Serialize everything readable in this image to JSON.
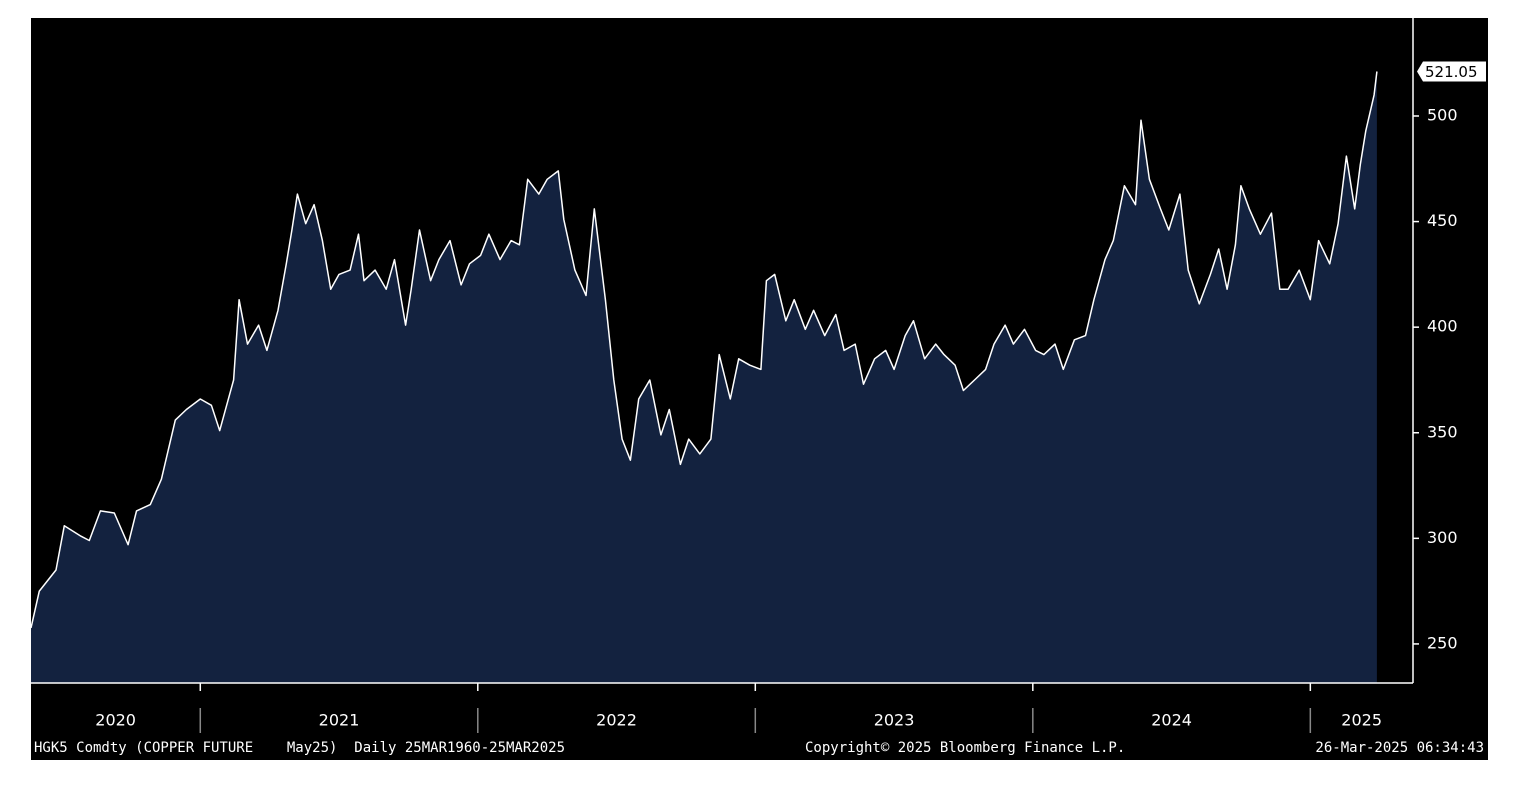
{
  "chart_data": {
    "type": "line",
    "x": [
      2020.39,
      2020.42,
      2020.48,
      2020.51,
      2020.57,
      2020.6,
      2020.64,
      2020.69,
      2020.74,
      2020.77,
      2020.82,
      2020.86,
      2020.91,
      2020.95,
      2021.0,
      2021.04,
      2021.07,
      2021.12,
      2021.14,
      2021.17,
      2021.21,
      2021.24,
      2021.28,
      2021.31,
      2021.33,
      2021.35,
      2021.38,
      2021.41,
      2021.44,
      2021.47,
      2021.5,
      2021.54,
      2021.57,
      2021.59,
      2021.63,
      2021.67,
      2021.7,
      2021.74,
      2021.76,
      2021.79,
      2021.83,
      2021.86,
      2021.9,
      2021.94,
      2021.97,
      2022.01,
      2022.04,
      2022.08,
      2022.12,
      2022.15,
      2022.18,
      2022.22,
      2022.25,
      2022.29,
      2022.31,
      2022.35,
      2022.39,
      2022.42,
      2022.46,
      2022.49,
      2022.52,
      2022.55,
      2022.58,
      2022.62,
      2022.66,
      2022.69,
      2022.73,
      2022.76,
      2022.8,
      2022.84,
      2022.87,
      2022.91,
      2022.94,
      2022.98,
      2023.02,
      2023.04,
      2023.07,
      2023.11,
      2023.14,
      2023.18,
      2023.21,
      2023.25,
      2023.29,
      2023.32,
      2023.36,
      2023.39,
      2023.43,
      2023.47,
      2023.5,
      2023.54,
      2023.57,
      2023.61,
      2023.65,
      2023.68,
      2023.72,
      2023.75,
      2023.79,
      2023.83,
      2023.86,
      2023.9,
      2023.93,
      2023.97,
      2024.01,
      2024.04,
      2024.08,
      2024.11,
      2024.15,
      2024.19,
      2024.22,
      2024.26,
      2024.29,
      2024.33,
      2024.37,
      2024.39,
      2024.42,
      2024.46,
      2024.49,
      2024.53,
      2024.56,
      2024.6,
      2024.64,
      2024.67,
      2024.7,
      2024.73,
      2024.75,
      2024.78,
      2024.82,
      2024.86,
      2024.89,
      2024.92,
      2024.96,
      2025.0,
      2025.03,
      2025.07,
      2025.1,
      2025.13,
      2025.16,
      2025.18,
      2025.2,
      2025.23,
      2025.24
    ],
    "values": [
      257.6,
      275,
      285,
      306,
      301,
      299,
      313,
      312,
      297,
      313,
      316,
      328,
      356,
      361,
      366,
      363,
      351,
      375,
      413,
      392,
      401,
      389,
      408,
      430,
      446,
      463,
      449,
      458,
      441,
      418,
      425,
      427,
      444,
      422,
      427,
      418,
      432,
      401,
      418,
      446,
      422,
      432,
      441,
      420,
      430,
      434,
      444,
      432,
      441,
      439,
      470,
      463,
      470,
      474,
      451,
      427,
      415,
      456,
      413,
      375,
      347,
      337,
      366,
      375,
      349,
      361,
      335,
      347,
      340,
      347,
      387,
      366,
      385,
      382,
      380,
      422,
      425,
      403,
      413,
      399,
      408,
      396,
      406,
      389,
      392,
      373,
      385,
      389,
      380,
      396,
      403,
      385,
      392,
      387,
      382,
      370,
      375,
      380,
      392,
      401,
      392,
      399,
      389,
      387,
      392,
      380,
      394,
      396,
      413,
      432,
      441,
      467,
      458,
      498,
      470,
      456,
      446,
      463,
      427,
      411,
      425,
      437,
      418,
      439,
      467,
      456,
      444,
      454,
      418,
      418,
      427,
      413,
      441,
      430,
      449,
      481,
      456,
      477,
      493,
      510,
      521.05
    ],
    "xlim": [
      2020.39,
      2025.37
    ],
    "xticks": [
      2021,
      2022,
      2023,
      2024,
      2025
    ],
    "year_labels": [
      "2020",
      "2021",
      "2022",
      "2023",
      "2024",
      "2025"
    ],
    "ylim": [
      231.5,
      546.4
    ],
    "yticks": [
      250,
      300,
      350,
      400,
      450,
      500
    ],
    "line_color": "#ffffff",
    "fill_color": "#13223f",
    "background": "#000000",
    "footer": {
      "left": "HGK5 Comdty (COPPER FUTURE    May25)  Daily 25MAR1960-25MAR2025",
      "center": "Copyright© 2025 Bloomberg Finance L.P.",
      "right": "26-Mar-2025 06:34:43"
    }
  }
}
